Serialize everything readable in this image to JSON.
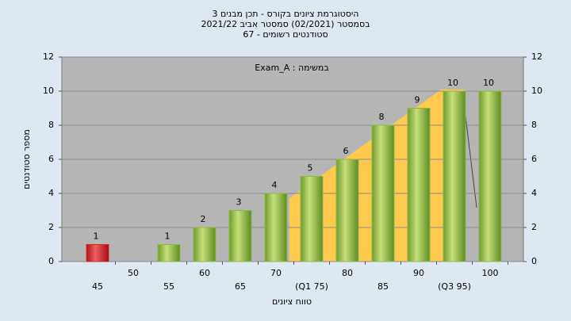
{
  "chart_data": {
    "type": "bar",
    "title": "היסטוגרמת ציונים בקורס - תכן מבנים 3",
    "subtitle": "בסמסטר  (02/2021)  סמסטר אביב 2021/22",
    "subtitle2": "סטודנטים רשומים - 67",
    "annotation": "במשימה : Exam_A",
    "x_label": "טווח ציונים",
    "y_label": "מספר סטודנטים",
    "categories": [
      "45",
      "50",
      "55",
      "60",
      "65",
      "70",
      "(Q1 75)",
      "80",
      "85",
      "90",
      "(Q3 95)",
      "100"
    ],
    "values": [
      1,
      null,
      1,
      2,
      3,
      4,
      5,
      6,
      8,
      9,
      10,
      10
    ],
    "colors": [
      "#d9262b",
      "#8fb84a",
      "#8fb84a",
      "#8fb84a",
      "#8fb84a",
      "#8fb84a",
      "#8fb84a",
      "#8fb84a",
      "#8fb84a",
      "#8fb84a",
      "#8fb84a",
      "#8fb84a"
    ],
    "ylim": [
      0,
      12
    ],
    "yticks": [
      0,
      2,
      4,
      6,
      8,
      10,
      12
    ],
    "grid": true
  }
}
